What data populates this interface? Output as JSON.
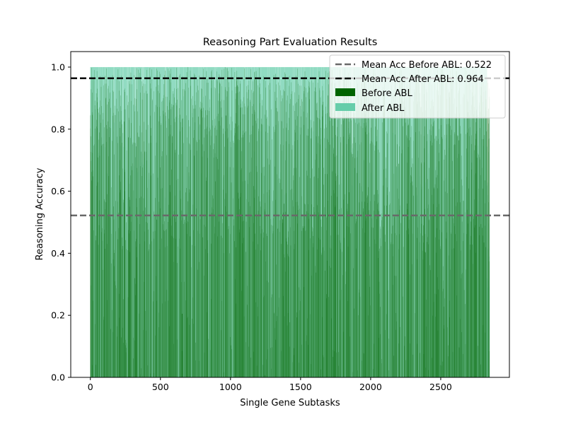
{
  "chart_data": {
    "type": "bar",
    "title": "Reasoning Part Evaluation Results",
    "xlabel": "Single Gene Subtasks",
    "ylabel": "Reasoning Accuracy",
    "n_subtasks": 2850,
    "xlim": [
      -140,
      2990
    ],
    "ylim": [
      0,
      1.05
    ],
    "xticks": [
      0,
      500,
      1000,
      1500,
      2000,
      2500
    ],
    "yticks": [
      0.0,
      0.2,
      0.4,
      0.6,
      0.8,
      1.0
    ],
    "xtick_labels": [
      "0",
      "500",
      "1000",
      "1500",
      "2000",
      "2500"
    ],
    "ytick_labels": [
      "0.0",
      "0.2",
      "0.4",
      "0.6",
      "0.8",
      "1.0"
    ],
    "series": [
      {
        "name": "Before ABL",
        "color": "#006400",
        "mean": 0.522,
        "note": "per-subtask accuracy varies widely between ~0.0 and 1.0"
      },
      {
        "name": "After ABL",
        "color": "#66cdaa",
        "mean": 0.964
      }
    ],
    "reference_lines": [
      {
        "label": "Mean Acc Before ABL: 0.522",
        "y": 0.522,
        "color": "#696969",
        "style": "dashed"
      },
      {
        "label": "Mean Acc After ABL: 0.964",
        "y": 0.964,
        "color": "#000000",
        "style": "dashed"
      }
    ],
    "legend": {
      "placement": "top-right",
      "entries": [
        "Mean Acc Before ABL: 0.522",
        "Mean Acc After ABL: 0.964",
        "Before ABL",
        "After ABL"
      ]
    },
    "grid": false
  }
}
